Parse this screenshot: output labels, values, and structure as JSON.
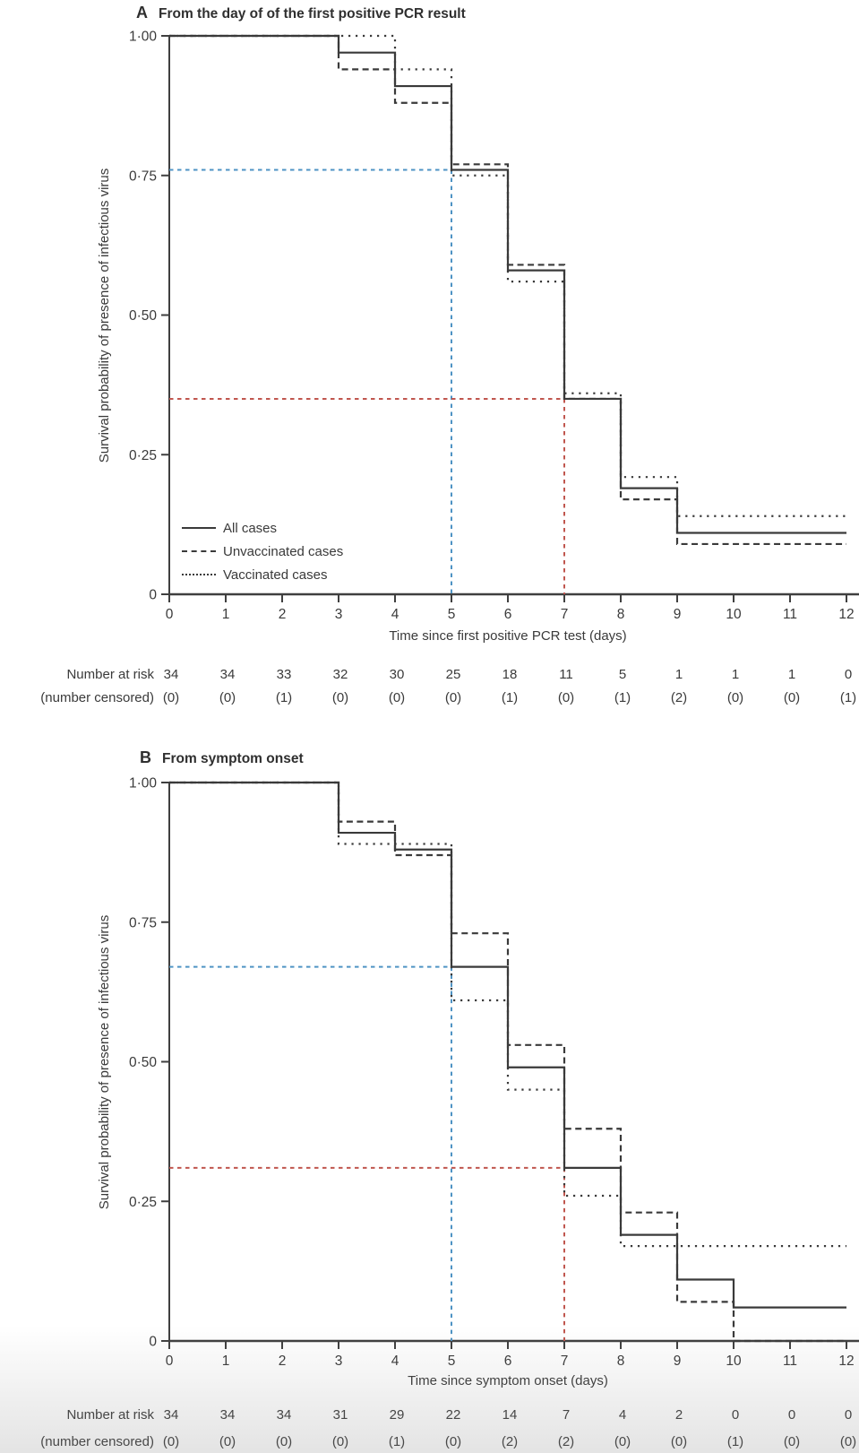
{
  "colors": {
    "curve": "#3a3a3a",
    "axis": "#3f3f3f",
    "blue_reference": "#4e93c4",
    "red_reference": "#c0564e"
  },
  "chart_data": [
    {
      "type": "line",
      "panel_label": "A",
      "title": "From the day of of the first positive PCR result",
      "xlabel": "Time since first positive PCR test (days)",
      "ylabel": "Survival probability of presence of infectious virus",
      "xlim": [
        0,
        12
      ],
      "ylim": [
        0,
        1
      ],
      "grid": false,
      "step_mode": "step-after",
      "xticks": [
        "0",
        "1",
        "2",
        "3",
        "4",
        "5",
        "6",
        "7",
        "8",
        "9",
        "10",
        "11",
        "12"
      ],
      "yticks": [
        {
          "label": "1·00",
          "value": 1.0
        },
        {
          "label": "0·75",
          "value": 0.75
        },
        {
          "label": "0·50",
          "value": 0.5
        },
        {
          "label": "0·25",
          "value": 0.25
        },
        {
          "label": "0",
          "value": 0
        }
      ],
      "series": [
        {
          "name": "All cases",
          "style": "solid",
          "points": [
            [
              0,
              1.0
            ],
            [
              3,
              0.97
            ],
            [
              4,
              0.91
            ],
            [
              5,
              0.76
            ],
            [
              6,
              0.58
            ],
            [
              7,
              0.35
            ],
            [
              8,
              0.19
            ],
            [
              9,
              0.11
            ],
            [
              12,
              0.11
            ]
          ]
        },
        {
          "name": "Unvaccinated cases",
          "style": "dashed",
          "points": [
            [
              0,
              1.0
            ],
            [
              3,
              0.94
            ],
            [
              4,
              0.88
            ],
            [
              5,
              0.77
            ],
            [
              6,
              0.59
            ],
            [
              7,
              0.35
            ],
            [
              8,
              0.17
            ],
            [
              9,
              0.09
            ],
            [
              12,
              0.09
            ]
          ]
        },
        {
          "name": "Vaccinated cases",
          "style": "dotted",
          "points": [
            [
              0,
              1.0
            ],
            [
              4,
              0.94
            ],
            [
              5,
              0.75
            ],
            [
              6,
              0.56
            ],
            [
              7,
              0.36
            ],
            [
              8,
              0.21
            ],
            [
              9,
              0.14
            ],
            [
              12,
              0.14
            ]
          ]
        }
      ],
      "reference_lines": [
        {
          "name": "blue-reference-day5",
          "x": 5,
          "y": 0.76,
          "color": "#4e93c4"
        },
        {
          "name": "red-reference-day7",
          "x": 7,
          "y": 0.35,
          "color": "#c0564e"
        }
      ],
      "legend": {
        "position": "lower-left",
        "entries": [
          {
            "label": "All cases",
            "style": "solid"
          },
          {
            "label": "Unvaccinated cases",
            "style": "dashed"
          },
          {
            "label": "Vaccinated cases",
            "style": "dotted"
          }
        ]
      },
      "risk_table": {
        "rows": [
          {
            "label": "Number at risk",
            "values": [
              "34",
              "34",
              "33",
              "32",
              "30",
              "25",
              "18",
              "11",
              "5",
              "1",
              "1",
              "1",
              "0"
            ]
          },
          {
            "label": "(number censored)",
            "values": [
              "(0)",
              "(0)",
              "(1)",
              "(0)",
              "(0)",
              "(0)",
              "(1)",
              "(0)",
              "(1)",
              "(2)",
              "(0)",
              "(0)",
              "(1)"
            ]
          }
        ]
      }
    },
    {
      "type": "line",
      "panel_label": "B",
      "title": "From symptom onset",
      "xlabel": "Time since symptom onset (days)",
      "ylabel": "Survival probability of presence of infectious virus",
      "xlim": [
        0,
        12
      ],
      "ylim": [
        0,
        1
      ],
      "grid": false,
      "step_mode": "step-after",
      "xticks": [
        "0",
        "1",
        "2",
        "3",
        "4",
        "5",
        "6",
        "7",
        "8",
        "9",
        "10",
        "11",
        "12"
      ],
      "yticks": [
        {
          "label": "1·00",
          "value": 1.0
        },
        {
          "label": "0·75",
          "value": 0.75
        },
        {
          "label": "0·50",
          "value": 0.5
        },
        {
          "label": "0·25",
          "value": 0.25
        },
        {
          "label": "0",
          "value": 0
        }
      ],
      "series": [
        {
          "name": "All cases",
          "style": "solid",
          "points": [
            [
              0,
              1.0
            ],
            [
              3,
              0.91
            ],
            [
              4,
              0.88
            ],
            [
              5,
              0.67
            ],
            [
              6,
              0.49
            ],
            [
              7,
              0.31
            ],
            [
              8,
              0.19
            ],
            [
              9,
              0.11
            ],
            [
              10,
              0.06
            ],
            [
              12,
              0.06
            ]
          ]
        },
        {
          "name": "Unvaccinated cases",
          "style": "dashed",
          "points": [
            [
              0,
              1.0
            ],
            [
              3,
              0.93
            ],
            [
              4,
              0.87
            ],
            [
              5,
              0.73
            ],
            [
              6,
              0.53
            ],
            [
              7,
              0.38
            ],
            [
              8,
              0.23
            ],
            [
              9,
              0.07
            ],
            [
              10,
              0.0
            ],
            [
              12,
              0.0
            ]
          ]
        },
        {
          "name": "Vaccinated cases",
          "style": "dotted",
          "points": [
            [
              0,
              1.0
            ],
            [
              3,
              0.89
            ],
            [
              5,
              0.61
            ],
            [
              6,
              0.45
            ],
            [
              7,
              0.26
            ],
            [
              8,
              0.17
            ],
            [
              12,
              0.17
            ]
          ]
        }
      ],
      "reference_lines": [
        {
          "name": "blue-reference-day5",
          "x": 5,
          "y": 0.67,
          "color": "#4e93c4"
        },
        {
          "name": "red-reference-day7",
          "x": 7,
          "y": 0.31,
          "color": "#c0564e"
        }
      ],
      "legend": null,
      "risk_table": {
        "rows": [
          {
            "label": "Number at risk",
            "values": [
              "34",
              "34",
              "34",
              "31",
              "29",
              "22",
              "14",
              "7",
              "4",
              "2",
              "0",
              "0",
              "0"
            ]
          },
          {
            "label": "(number censored)",
            "values": [
              "(0)",
              "(0)",
              "(0)",
              "(0)",
              "(1)",
              "(0)",
              "(2)",
              "(2)",
              "(0)",
              "(0)",
              "(1)",
              "(0)",
              "(0)"
            ]
          }
        ]
      }
    }
  ]
}
